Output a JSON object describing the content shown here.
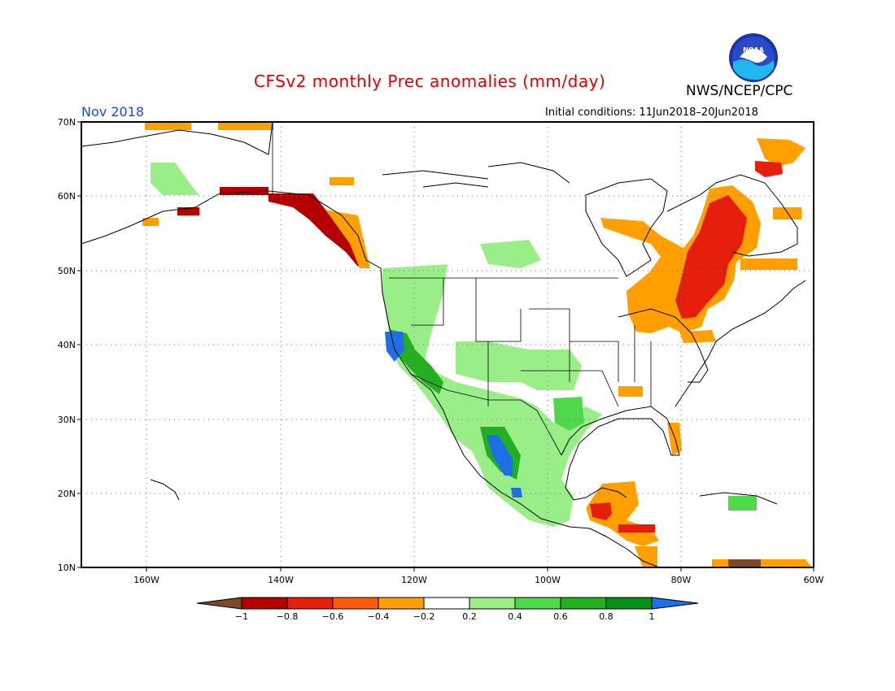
{
  "title": "CFSv2 monthly Prec anomalies (mm/day)",
  "agency": "NWS/NCEP/CPC",
  "valid_month": "Nov 2018",
  "initial_conditions": "Initial conditions: 11Jun2018–20Jun2018",
  "logo_text": "NOAA",
  "lat_labels": [
    "70N",
    "60N",
    "50N",
    "40N",
    "30N",
    "20N",
    "10N"
  ],
  "lon_labels": [
    "160W",
    "140W",
    "120W",
    "100W",
    "80W",
    "60W"
  ],
  "colorbar": {
    "ticks": [
      "−1",
      "−0.8",
      "−0.6",
      "−0.4",
      "−0.2",
      "0.2",
      "0.4",
      "0.6",
      "0.8",
      "1"
    ],
    "colors": {
      "lt_-1": "#7a4a2a",
      "-1_-0.8": "#b40000",
      "-0.8_-0.6": "#e51d0b",
      "-0.6_-0.4": "#ff5a12",
      "-0.4_-0.2": "#ff9f00",
      "-0.2_0.2": "#ffffff",
      "0.2_0.4": "#99ee88",
      "0.4_0.6": "#4fd84a",
      "0.6_0.8": "#22b022",
      "0.8_1": "#0a8f1a",
      "gt_1": "#1e6ee6"
    }
  }
}
